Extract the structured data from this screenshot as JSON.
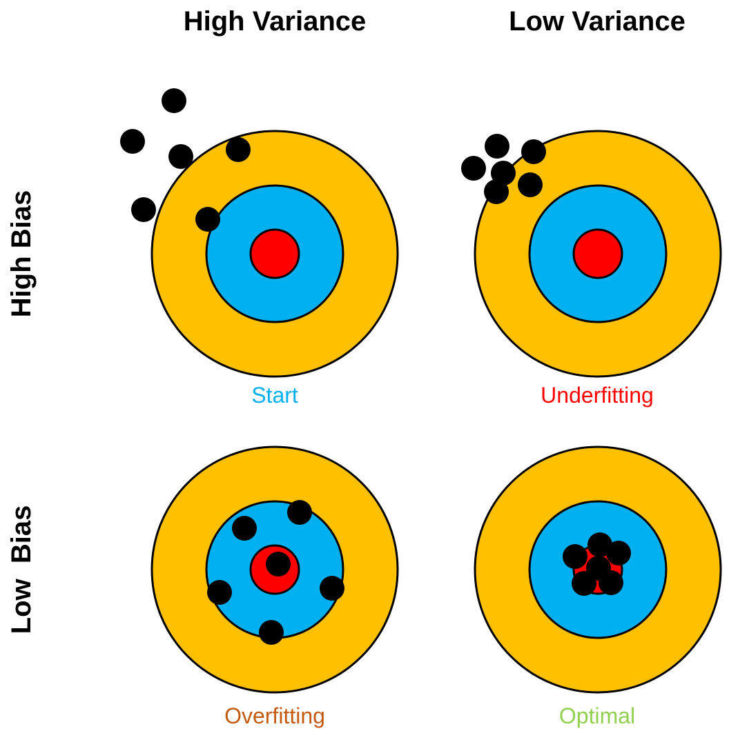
{
  "columns": {
    "high_variance": "High Variance",
    "low_variance": "Low Variance"
  },
  "rows": {
    "high_bias": "High Bias",
    "low_bias": "Low  Bias"
  },
  "colors": {
    "outer_ring": "#FFC000",
    "middle_ring": "#00B0F0",
    "bullseye": "#FF0000",
    "dot": "#000000"
  },
  "quadrants": [
    {
      "id": "high-bias-high-variance",
      "caption": "Start",
      "caption_color": "#00B0F0"
    },
    {
      "id": "high-bias-low-variance",
      "caption": "Underfitting",
      "caption_color": "#FF0000"
    },
    {
      "id": "low-bias-high-variance",
      "caption": "Overfitting",
      "caption_color": "#C55A11"
    },
    {
      "id": "low-bias-low-variance",
      "caption": "Optimal",
      "caption_color": "#92D050"
    }
  ]
}
